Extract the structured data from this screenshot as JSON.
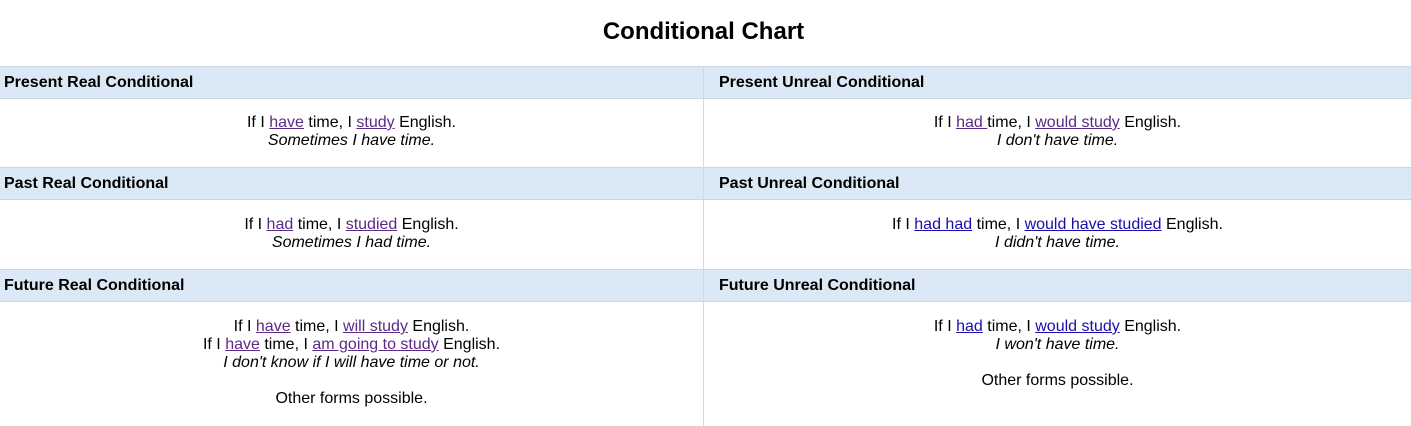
{
  "title": "Conditional Chart",
  "sections": {
    "present_real": {
      "header": "Present Real Conditional",
      "lines": [
        [
          "If I ",
          "have",
          " time, I ",
          "study",
          " English."
        ],
        [
          "Sometimes I have time."
        ]
      ]
    },
    "present_unreal": {
      "header": "Present Unreal Conditional",
      "lines": [
        [
          "If I ",
          "had ",
          "time, I ",
          "would study",
          " English."
        ],
        [
          "I don't have time."
        ]
      ]
    },
    "past_real": {
      "header": "Past Real Conditional",
      "lines": [
        [
          "If I ",
          "had",
          " time, I ",
          "studied",
          " English."
        ],
        [
          "Sometimes I had time."
        ]
      ]
    },
    "past_unreal": {
      "header": "Past Unreal Conditional",
      "lines": [
        [
          "If I ",
          "had had",
          " time, I ",
          "would have studied",
          " English."
        ],
        [
          "I didn't have time."
        ]
      ]
    },
    "future_real": {
      "header": "Future Real Conditional",
      "lines": [
        [
          "If I ",
          "have",
          " time, I ",
          "will study",
          " English."
        ],
        [
          "If I ",
          "have",
          " time, I ",
          "am going to study",
          " English."
        ],
        [
          "I don't know if I will have time or not."
        ],
        [
          "Other forms possible."
        ]
      ]
    },
    "future_unreal": {
      "header": "Future Unreal Conditional",
      "lines": [
        [
          "If I ",
          "had",
          " time, I ",
          "would study",
          " English."
        ],
        [
          "I won't have time."
        ],
        [
          "Other forms possible."
        ]
      ]
    }
  },
  "colors": {
    "header_bg": "#dbe8f5",
    "visited_link": "#5b2a86",
    "unvisited_link": "#1a0dab"
  }
}
